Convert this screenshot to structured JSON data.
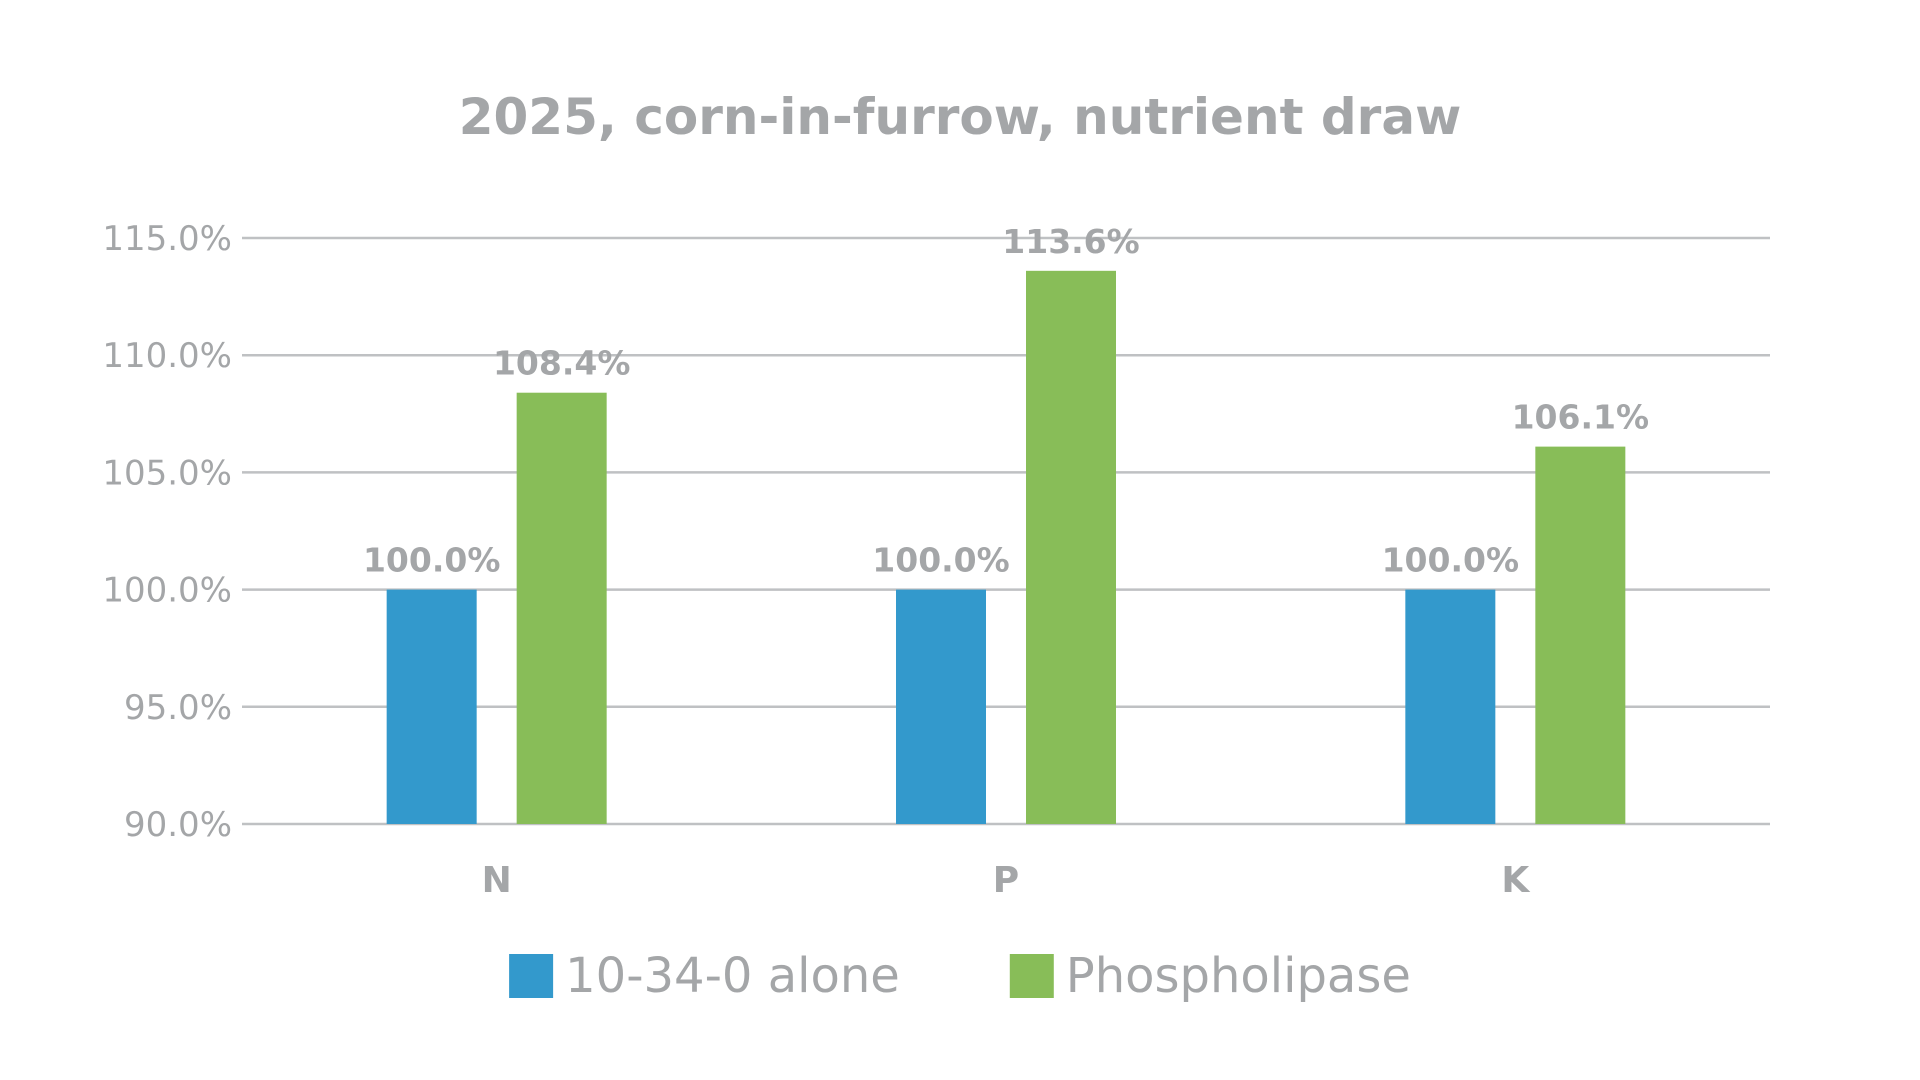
{
  "chart_data": {
    "type": "bar",
    "title": "2025, corn-in-furrow, nutrient draw",
    "categories": [
      "N",
      "P",
      "K"
    ],
    "series": [
      {
        "name": "10-34-0 alone",
        "color": "#3399cc",
        "values": [
          100.0,
          100.0,
          100.0
        ],
        "labels": [
          "100.0%",
          "100.0%",
          "100.0%"
        ]
      },
      {
        "name": "Phospholipase",
        "color": "#88bd58",
        "values": [
          108.4,
          113.6,
          106.1
        ],
        "labels": [
          "108.4%",
          "113.6%",
          "106.1%"
        ]
      }
    ],
    "ylim": [
      90,
      115
    ],
    "yticks": [
      90,
      95,
      100,
      105,
      110,
      115
    ],
    "ytick_labels": [
      "90.0%",
      "95.0%",
      "100.0%",
      "105.0%",
      "110.0%",
      "115.0%"
    ],
    "xlabel": "",
    "ylabel": "",
    "grid": true,
    "legend_position": "bottom"
  }
}
